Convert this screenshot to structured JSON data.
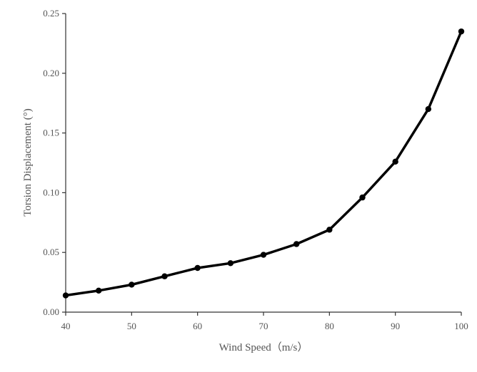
{
  "chart_data": {
    "type": "line",
    "title": "",
    "xlabel": "Wind Speed（m/s）",
    "ylabel": "Torsion Displacement (°)",
    "xlim": [
      40,
      100
    ],
    "ylim": [
      0,
      0.25
    ],
    "xticks": [
      "40",
      "50",
      "60",
      "70",
      "80",
      "90",
      "100"
    ],
    "yticks": [
      "0.00",
      "0.05",
      "0.10",
      "0.15",
      "0.20",
      "0.25"
    ],
    "grid": false,
    "series": [
      {
        "x": [
          40,
          45,
          50,
          55,
          60,
          65,
          70,
          75,
          80,
          85,
          90,
          95,
          100
        ],
        "y": [
          0.014,
          0.018,
          0.023,
          0.03,
          0.037,
          0.041,
          0.048,
          0.057,
          0.069,
          0.096,
          0.126,
          0.17,
          0.235
        ],
        "color": "#000000",
        "marker": "circle"
      }
    ]
  }
}
